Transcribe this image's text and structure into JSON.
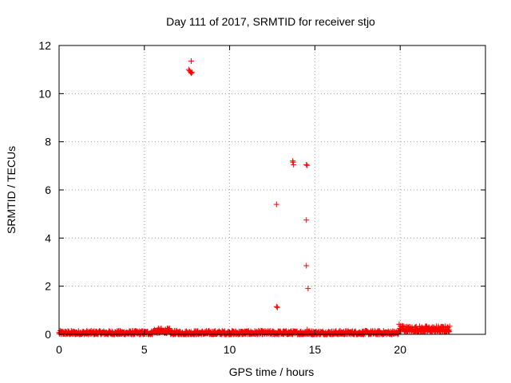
{
  "chart_data": {
    "type": "scatter",
    "title": "Day 111 of 2017, SRMTID for receiver stjo",
    "xlabel": "GPS time / hours",
    "ylabel": "SRMTID / TECUs",
    "xlim": [
      0,
      25
    ],
    "ylim": [
      0,
      12
    ],
    "xticks": [
      "0",
      "5",
      "10",
      "15",
      "20"
    ],
    "xtick_values": [
      0,
      5,
      10,
      15,
      20
    ],
    "yticks": [
      "0",
      "2",
      "4",
      "6",
      "8",
      "10",
      "12"
    ],
    "ytick_values": [
      0,
      2,
      4,
      6,
      8,
      10,
      12
    ],
    "grid": true,
    "legend": false,
    "marker": "plus",
    "color": "#ff0000",
    "baseline_band": {
      "x_range": [
        0,
        22.9
      ],
      "typical_y_range": [
        0.0,
        0.15
      ],
      "elevated_segments": [
        {
          "x_range": [
            5.5,
            6.5
          ],
          "y_range": [
            0.05,
            0.25
          ]
        },
        {
          "x_range": [
            19.9,
            20.3
          ],
          "y_range": [
            0.1,
            0.45
          ]
        },
        {
          "x_range": [
            20.3,
            22.9
          ],
          "y_range": [
            0.1,
            0.35
          ]
        }
      ]
    },
    "outliers": [
      {
        "x": 7.75,
        "y": 11.35
      },
      {
        "x": 7.6,
        "y": 11.0
      },
      {
        "x": 7.65,
        "y": 10.95
      },
      {
        "x": 7.7,
        "y": 10.9
      },
      {
        "x": 7.75,
        "y": 10.85
      },
      {
        "x": 7.8,
        "y": 10.88
      },
      {
        "x": 12.75,
        "y": 5.4
      },
      {
        "x": 12.75,
        "y": 1.15
      },
      {
        "x": 12.8,
        "y": 1.12
      },
      {
        "x": 13.7,
        "y": 7.2
      },
      {
        "x": 13.72,
        "y": 7.15
      },
      {
        "x": 13.75,
        "y": 7.05
      },
      {
        "x": 14.5,
        "y": 7.05
      },
      {
        "x": 14.55,
        "y": 7.02
      },
      {
        "x": 14.5,
        "y": 4.75
      },
      {
        "x": 14.5,
        "y": 2.85
      },
      {
        "x": 14.6,
        "y": 1.9
      },
      {
        "x": 14.55,
        "y": 0.2
      }
    ]
  }
}
